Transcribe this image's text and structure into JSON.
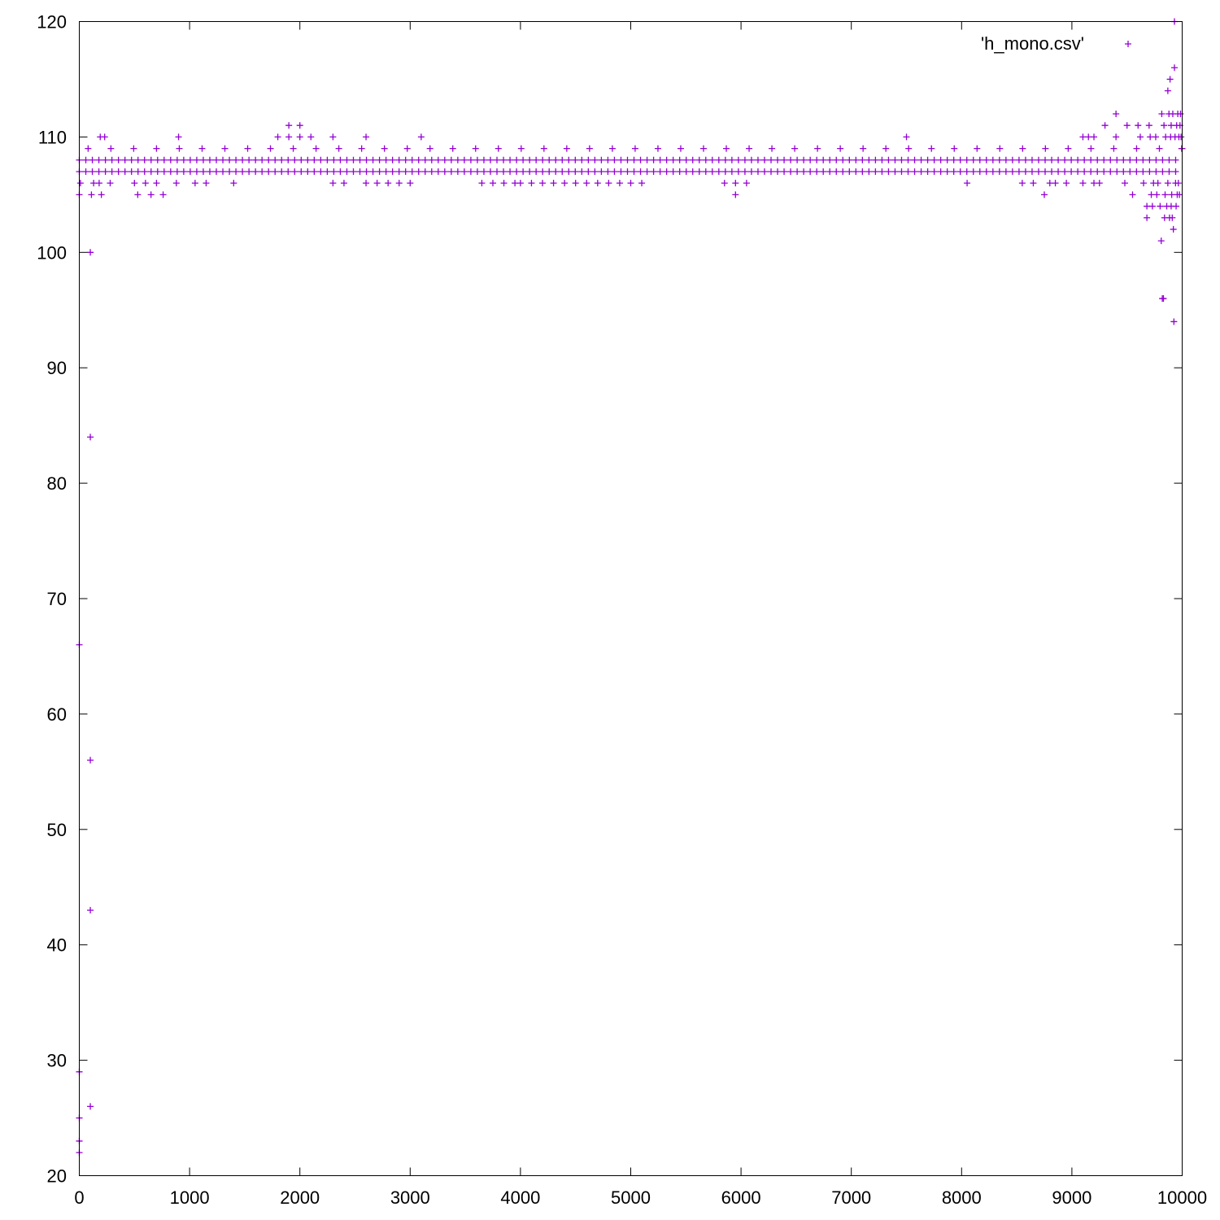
{
  "chart_data": {
    "type": "scatter",
    "title": "",
    "xlabel": "",
    "ylabel": "",
    "xlim": [
      0,
      10000
    ],
    "ylim": [
      20,
      120
    ],
    "xticks": [
      "0",
      "1000",
      "2000",
      "3000",
      "4000",
      "5000",
      "6000",
      "7000",
      "8000",
      "9000",
      "10000"
    ],
    "yticks": [
      "20",
      "30",
      "40",
      "50",
      "60",
      "70",
      "80",
      "90",
      "100",
      "110",
      "120"
    ],
    "grid": false,
    "legend_position": "top-right",
    "marker": "plus",
    "series": [
      {
        "name": "'h_mono.csv'",
        "color": "#9400d3",
        "bands": [
          {
            "y": 107,
            "x_start": 0,
            "x_end": 10000,
            "density": "continuous"
          },
          {
            "y": 108,
            "x_start": 0,
            "x_end": 10000,
            "density": "continuous"
          },
          {
            "y": 109,
            "x_start": 80,
            "x_end": 10000,
            "density": "sparse"
          }
        ],
        "points": [
          {
            "x": 0,
            "y": 22
          },
          {
            "x": 0,
            "y": 23
          },
          {
            "x": 0,
            "y": 25
          },
          {
            "x": 0,
            "y": 29
          },
          {
            "x": 0,
            "y": 66
          },
          {
            "x": 0,
            "y": 105
          },
          {
            "x": 10,
            "y": 106
          },
          {
            "x": 100,
            "y": 26
          },
          {
            "x": 100,
            "y": 43
          },
          {
            "x": 100,
            "y": 56
          },
          {
            "x": 100,
            "y": 84
          },
          {
            "x": 100,
            "y": 100
          },
          {
            "x": 110,
            "y": 105
          },
          {
            "x": 190,
            "y": 110
          },
          {
            "x": 230,
            "y": 110
          },
          {
            "x": 200,
            "y": 105
          },
          {
            "x": 180,
            "y": 106
          },
          {
            "x": 130,
            "y": 106
          },
          {
            "x": 280,
            "y": 106
          },
          {
            "x": 500,
            "y": 106
          },
          {
            "x": 530,
            "y": 105
          },
          {
            "x": 650,
            "y": 105
          },
          {
            "x": 760,
            "y": 105
          },
          {
            "x": 600,
            "y": 106
          },
          {
            "x": 700,
            "y": 106
          },
          {
            "x": 880,
            "y": 106
          },
          {
            "x": 900,
            "y": 110
          },
          {
            "x": 1050,
            "y": 106
          },
          {
            "x": 1150,
            "y": 106
          },
          {
            "x": 1400,
            "y": 106
          },
          {
            "x": 1800,
            "y": 110
          },
          {
            "x": 1900,
            "y": 111
          },
          {
            "x": 1900,
            "y": 110
          },
          {
            "x": 2000,
            "y": 111
          },
          {
            "x": 2000,
            "y": 110
          },
          {
            "x": 2100,
            "y": 110
          },
          {
            "x": 2300,
            "y": 110
          },
          {
            "x": 2300,
            "y": 106
          },
          {
            "x": 2400,
            "y": 106
          },
          {
            "x": 2600,
            "y": 110
          },
          {
            "x": 2600,
            "y": 106
          },
          {
            "x": 2700,
            "y": 106
          },
          {
            "x": 2800,
            "y": 106
          },
          {
            "x": 2900,
            "y": 106
          },
          {
            "x": 3000,
            "y": 106
          },
          {
            "x": 3100,
            "y": 110
          },
          {
            "x": 3650,
            "y": 106
          },
          {
            "x": 3750,
            "y": 106
          },
          {
            "x": 3850,
            "y": 106
          },
          {
            "x": 3950,
            "y": 106
          },
          {
            "x": 4000,
            "y": 106
          },
          {
            "x": 4100,
            "y": 106
          },
          {
            "x": 4200,
            "y": 106
          },
          {
            "x": 4300,
            "y": 106
          },
          {
            "x": 4400,
            "y": 106
          },
          {
            "x": 4500,
            "y": 106
          },
          {
            "x": 4600,
            "y": 106
          },
          {
            "x": 4700,
            "y": 106
          },
          {
            "x": 4800,
            "y": 106
          },
          {
            "x": 4900,
            "y": 106
          },
          {
            "x": 5000,
            "y": 106
          },
          {
            "x": 5100,
            "y": 106
          },
          {
            "x": 5850,
            "y": 106
          },
          {
            "x": 5950,
            "y": 105
          },
          {
            "x": 5950,
            "y": 106
          },
          {
            "x": 6050,
            "y": 106
          },
          {
            "x": 7500,
            "y": 110
          },
          {
            "x": 8050,
            "y": 106
          },
          {
            "x": 8550,
            "y": 106
          },
          {
            "x": 8650,
            "y": 106
          },
          {
            "x": 8750,
            "y": 105
          },
          {
            "x": 8800,
            "y": 106
          },
          {
            "x": 8850,
            "y": 106
          },
          {
            "x": 8950,
            "y": 106
          },
          {
            "x": 9100,
            "y": 110
          },
          {
            "x": 9150,
            "y": 110
          },
          {
            "x": 9200,
            "y": 110
          },
          {
            "x": 9100,
            "y": 106
          },
          {
            "x": 9200,
            "y": 106
          },
          {
            "x": 9250,
            "y": 106
          },
          {
            "x": 9300,
            "y": 111
          },
          {
            "x": 9400,
            "y": 112
          },
          {
            "x": 9400,
            "y": 110
          },
          {
            "x": 9480,
            "y": 106
          },
          {
            "x": 9500,
            "y": 111
          },
          {
            "x": 9550,
            "y": 105
          },
          {
            "x": 9600,
            "y": 111
          },
          {
            "x": 9620,
            "y": 110
          },
          {
            "x": 9650,
            "y": 106
          },
          {
            "x": 9680,
            "y": 103
          },
          {
            "x": 9680,
            "y": 104
          },
          {
            "x": 9700,
            "y": 111
          },
          {
            "x": 9710,
            "y": 110
          },
          {
            "x": 9720,
            "y": 105
          },
          {
            "x": 9730,
            "y": 104
          },
          {
            "x": 9740,
            "y": 106
          },
          {
            "x": 9760,
            "y": 110
          },
          {
            "x": 9770,
            "y": 105
          },
          {
            "x": 9780,
            "y": 106
          },
          {
            "x": 9800,
            "y": 104
          },
          {
            "x": 9810,
            "y": 101
          },
          {
            "x": 9815,
            "y": 112
          },
          {
            "x": 9820,
            "y": 96
          },
          {
            "x": 9830,
            "y": 96
          },
          {
            "x": 9835,
            "y": 111
          },
          {
            "x": 9840,
            "y": 103
          },
          {
            "x": 9845,
            "y": 105
          },
          {
            "x": 9850,
            "y": 110
          },
          {
            "x": 9860,
            "y": 104
          },
          {
            "x": 9870,
            "y": 114
          },
          {
            "x": 9870,
            "y": 106
          },
          {
            "x": 9880,
            "y": 112
          },
          {
            "x": 9885,
            "y": 103
          },
          {
            "x": 9890,
            "y": 115
          },
          {
            "x": 9895,
            "y": 110
          },
          {
            "x": 9900,
            "y": 111
          },
          {
            "x": 9900,
            "y": 104
          },
          {
            "x": 9905,
            "y": 105
          },
          {
            "x": 9910,
            "y": 103
          },
          {
            "x": 9915,
            "y": 112
          },
          {
            "x": 9920,
            "y": 102
          },
          {
            "x": 9925,
            "y": 94
          },
          {
            "x": 9930,
            "y": 116
          },
          {
            "x": 9935,
            "y": 110
          },
          {
            "x": 9940,
            "y": 106
          },
          {
            "x": 9945,
            "y": 104
          },
          {
            "x": 9950,
            "y": 111
          },
          {
            "x": 9955,
            "y": 105
          },
          {
            "x": 9960,
            "y": 112
          },
          {
            "x": 9965,
            "y": 106
          },
          {
            "x": 9970,
            "y": 110
          },
          {
            "x": 9975,
            "y": 105
          },
          {
            "x": 9980,
            "y": 111
          },
          {
            "x": 9985,
            "y": 112
          },
          {
            "x": 9990,
            "y": 110
          },
          {
            "x": 9995,
            "y": 109
          },
          {
            "x": 9930,
            "y": 120
          }
        ]
      }
    ]
  }
}
